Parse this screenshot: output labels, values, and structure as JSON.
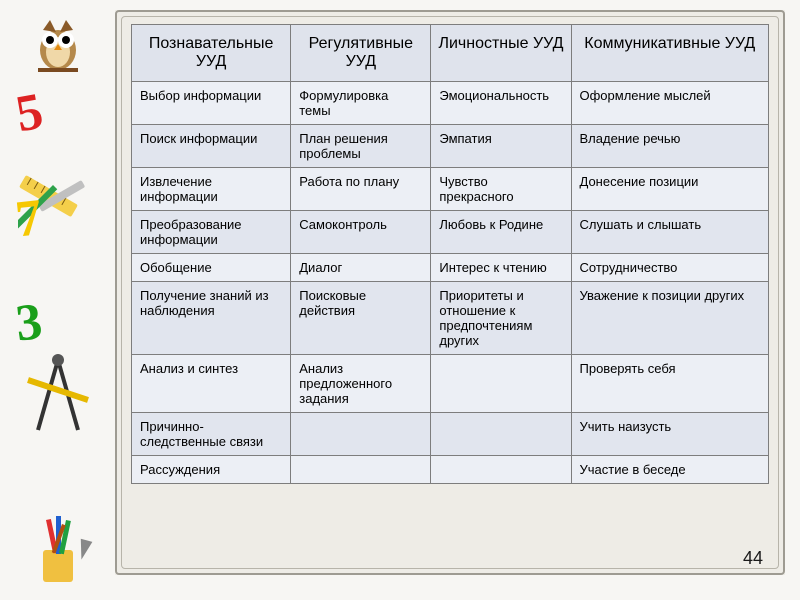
{
  "page_number": "44",
  "decor": {
    "num5": "5",
    "num7": "7",
    "num3": "3"
  },
  "table": {
    "type": "table",
    "background_color": "#eeece6",
    "header_bg": "#dfe3ec",
    "row_odd_bg": "#eceff5",
    "row_even_bg": "#e1e5ee",
    "border_color": "#7d7d7d",
    "header_fontsize": 16,
    "body_fontsize": 13,
    "column_widths_pct": [
      25,
      22,
      22,
      31
    ],
    "columns": [
      "Познавательные УУД",
      "Регулятивные УУД",
      "Личностные УУД",
      "Коммуникативные УУД"
    ],
    "rows": [
      [
        "Выбор информации",
        "Формулировка темы",
        "Эмоциональность",
        "Оформление мыслей"
      ],
      [
        "Поиск информации",
        "План решения проблемы",
        "Эмпатия",
        "Владение речью"
      ],
      [
        "Извлечение информации",
        "Работа по плану",
        "Чувство прекрасного",
        "Донесение позиции"
      ],
      [
        "Преобразование информации",
        "Самоконтроль",
        "Любовь к Родине",
        "Слушать и слышать"
      ],
      [
        "Обобщение",
        "Диалог",
        "Интерес к чтению",
        "Сотрудничество"
      ],
      [
        "Получение знаний из наблюдения",
        "Поисковые действия",
        "Приоритеты и отношение к предпочтениям других",
        "Уважение к позиции других"
      ],
      [
        "Анализ и синтез",
        "Анализ предложенного задания",
        "",
        "Проверять себя"
      ],
      [
        "Причинно-следственные связи",
        "",
        "",
        "Учить наизусть"
      ],
      [
        "Рассуждения",
        "",
        "",
        "Участие в беседе"
      ]
    ]
  }
}
